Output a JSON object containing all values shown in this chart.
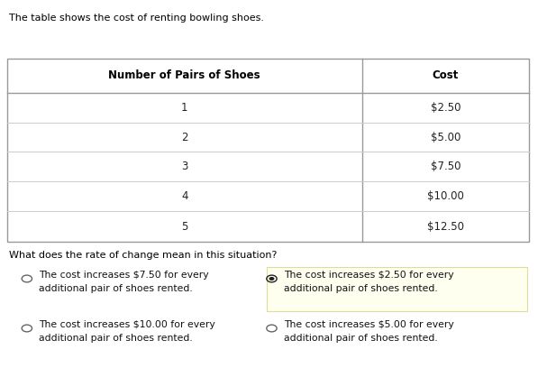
{
  "title_text": "The table shows the cost of renting bowling shoes.",
  "table_header": [
    "Number of Pairs of Shoes",
    "Cost"
  ],
  "table_rows": [
    [
      "1",
      "$2.50"
    ],
    [
      "2",
      "$5.00"
    ],
    [
      "3",
      "$7.50"
    ],
    [
      "4",
      "$10.00"
    ],
    [
      "5",
      "$12.50"
    ]
  ],
  "question": "What does the rate of change mean in this situation?",
  "options": [
    {
      "text": "The cost increases $7.50 for every\nadditional pair of shoes rented.",
      "selected": false,
      "highlight": false
    },
    {
      "text": "The cost increases $2.50 for every\nadditional pair of shoes rented.",
      "selected": true,
      "highlight": true
    },
    {
      "text": "The cost increases $10.00 for every\nadditional pair of shoes rented.",
      "selected": false,
      "highlight": false
    },
    {
      "text": "The cost increases $5.00 for every\nadditional pair of shoes rented.",
      "selected": false,
      "highlight": false
    }
  ],
  "bg_color": "#ffffff",
  "table_border_color": "#999999",
  "table_header_color": "#000000",
  "table_text_color": "#222222",
  "highlight_bg": "#fffff0",
  "highlight_border": "#dddd99",
  "title_color": "#000000",
  "question_color": "#000000",
  "option_text_color": "#111111",
  "fig_width": 5.97,
  "fig_height": 4.08,
  "dpi": 100
}
